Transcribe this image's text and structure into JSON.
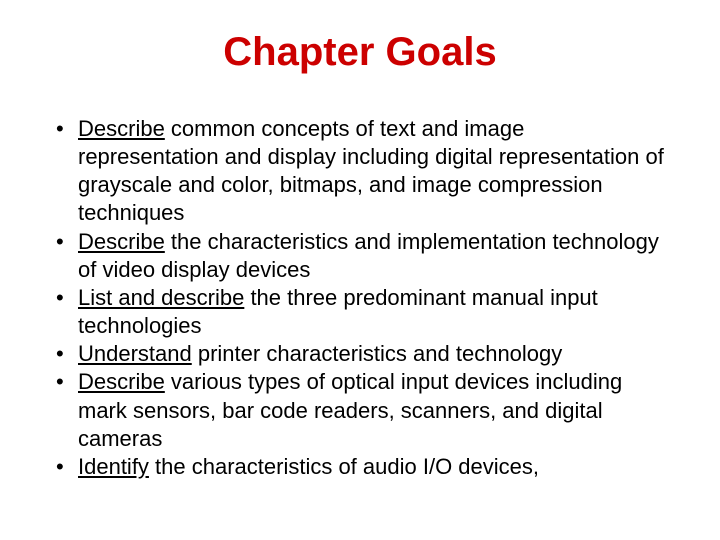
{
  "title": "Chapter Goals",
  "title_color": "#cc0000",
  "title_fontsize": 40,
  "body_fontsize": 22,
  "body_color": "#000000",
  "background_color": "#ffffff",
  "font_family": "Comic Sans MS",
  "bullets": [
    {
      "lead": "Describe",
      "rest": " common concepts of text and image representation and display including digital representation of grayscale and color, bitmaps, and image compression techniques"
    },
    {
      "lead": "Describe",
      "rest": " the characteristics and implementation technology of video display devices"
    },
    {
      "lead": "List and describe",
      "rest": " the three predominant manual input technologies"
    },
    {
      "lead": "Understand",
      "rest": " printer characteristics and technology"
    },
    {
      "lead": "Describe",
      "rest": " various types of optical input devices including mark sensors, bar code readers, scanners, and digital cameras"
    },
    {
      "lead": "Identify",
      "rest": " the characteristics of audio I/O devices,"
    }
  ]
}
